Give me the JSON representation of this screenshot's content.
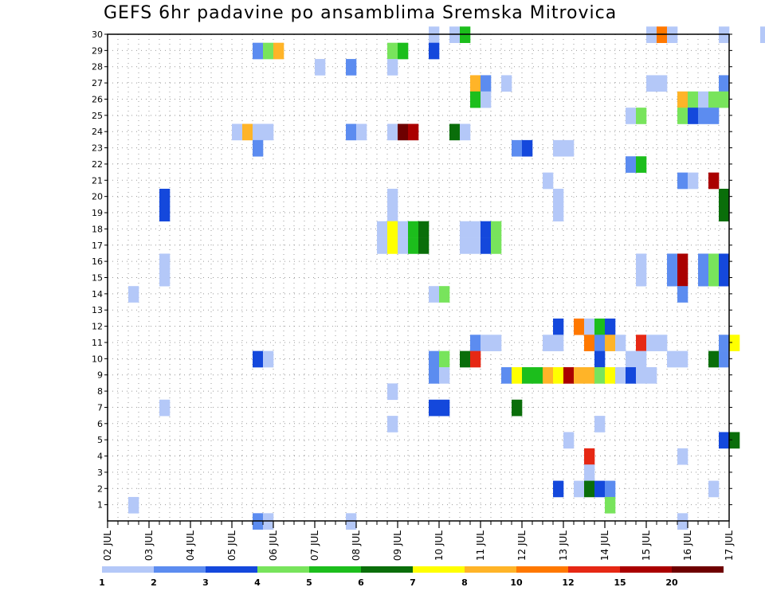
{
  "chart_data": {
    "type": "heatmap",
    "title": "GEFS 6hr padavine po ansamblima Sremska Mitrovica",
    "xlabel": "",
    "ylabel": "",
    "x_ticks": [
      "02 JUL",
      "03 JUL",
      "04 JUL",
      "05 JUL",
      "06 JUL",
      "07 JUL",
      "08 JUL",
      "09 JUL",
      "10 JUL",
      "11 JUL",
      "12 JUL",
      "13 JUL",
      "14 JUL",
      "15 JUL",
      "16 JUL",
      "17 JUL"
    ],
    "y_ticks": [
      1,
      2,
      3,
      4,
      5,
      6,
      7,
      8,
      9,
      10,
      11,
      12,
      13,
      14,
      15,
      16,
      17,
      18,
      19,
      20,
      21,
      22,
      23,
      24,
      25,
      26,
      27,
      28,
      29,
      30
    ],
    "ylim": [
      0,
      30
    ],
    "grid": true,
    "legend_placement": "bottom",
    "color_scale": {
      "labels": [
        "1",
        "2",
        "3",
        "4",
        "5",
        "6",
        "7",
        "8",
        "10",
        "12",
        "15",
        "20"
      ],
      "colors": [
        "#b4c8f8",
        "#5c8cf0",
        "#1448dc",
        "#78e45c",
        "#1cbe1c",
        "#0a6e0a",
        "#ffff00",
        "#ffb428",
        "#ff7800",
        "#e62814",
        "#aa0000",
        "#6e0000"
      ]
    },
    "cells": [
      {
        "d": "09 JUL 18",
        "m": 30,
        "c": 1
      },
      {
        "d": "10 JUL 06",
        "m": 30,
        "c": 1
      },
      {
        "d": "10 JUL 12",
        "m": 30,
        "c": 5
      },
      {
        "d": "15 JUL 00",
        "m": 30,
        "c": 1
      },
      {
        "d": "15 JUL 06",
        "m": 30,
        "c": 9
      },
      {
        "d": "15 JUL 12",
        "m": 30,
        "c": 1
      },
      {
        "d": "16 JUL 18",
        "m": 30,
        "c": 1
      },
      {
        "d": "17 JUL 18",
        "m": 30,
        "c": 1
      },
      {
        "d": "05 JUL 12",
        "m": 29,
        "c": 2
      },
      {
        "d": "05 JUL 18",
        "m": 29,
        "c": 4
      },
      {
        "d": "06 JUL 00",
        "m": 29,
        "c": 8
      },
      {
        "d": "08 JUL 18",
        "m": 29,
        "c": 4
      },
      {
        "d": "09 JUL 00",
        "m": 29,
        "c": 5
      },
      {
        "d": "09 JUL 18",
        "m": 29,
        "c": 3
      },
      {
        "d": "07 JUL 00",
        "m": 28,
        "c": 1
      },
      {
        "d": "07 JUL 18",
        "m": 28,
        "c": 2
      },
      {
        "d": "08 JUL 18",
        "m": 28,
        "c": 1
      },
      {
        "d": "10 JUL 18",
        "m": 27,
        "c": 8
      },
      {
        "d": "11 JUL 00",
        "m": 27,
        "c": 2
      },
      {
        "d": "11 JUL 12",
        "m": 27,
        "c": 1
      },
      {
        "d": "15 JUL 00",
        "m": 27,
        "c": 1
      },
      {
        "d": "15 JUL 06",
        "m": 27,
        "c": 1
      },
      {
        "d": "16 JUL 18",
        "m": 27,
        "c": 2
      },
      {
        "d": "10 JUL 18",
        "m": 26,
        "c": 5
      },
      {
        "d": "11 JUL 00",
        "m": 26,
        "c": 1
      },
      {
        "d": "15 JUL 18",
        "m": 26,
        "c": 8
      },
      {
        "d": "16 JUL 00",
        "m": 26,
        "c": 4
      },
      {
        "d": "16 JUL 06",
        "m": 26,
        "c": 1
      },
      {
        "d": "16 JUL 12",
        "m": 26,
        "c": 4
      },
      {
        "d": "16 JUL 18",
        "m": 26,
        "c": 4
      },
      {
        "d": "14 JUL 12",
        "m": 25,
        "c": 1
      },
      {
        "d": "14 JUL 18",
        "m": 25,
        "c": 4
      },
      {
        "d": "15 JUL 18",
        "m": 25,
        "c": 4
      },
      {
        "d": "16 JUL 00",
        "m": 25,
        "c": 3
      },
      {
        "d": "16 JUL 06",
        "m": 25,
        "c": 2
      },
      {
        "d": "16 JUL 12",
        "m": 25,
        "c": 2
      },
      {
        "d": "05 JUL 00",
        "m": 24,
        "c": 1
      },
      {
        "d": "05 JUL 06",
        "m": 24,
        "c": 8
      },
      {
        "d": "05 JUL 12",
        "m": 24,
        "c": 1
      },
      {
        "d": "05 JUL 18",
        "m": 24,
        "c": 1
      },
      {
        "d": "07 JUL 18",
        "m": 24,
        "c": 2
      },
      {
        "d": "08 JUL 00",
        "m": 24,
        "c": 1
      },
      {
        "d": "08 JUL 18",
        "m": 24,
        "c": 1
      },
      {
        "d": "09 JUL 00",
        "m": 24,
        "c": 12
      },
      {
        "d": "09 JUL 06",
        "m": 24,
        "c": 11
      },
      {
        "d": "10 JUL 06",
        "m": 24,
        "c": 6
      },
      {
        "d": "10 JUL 12",
        "m": 24,
        "c": 1
      },
      {
        "d": "05 JUL 12",
        "m": 23,
        "c": 2
      },
      {
        "d": "11 JUL 18",
        "m": 23,
        "c": 2
      },
      {
        "d": "12 JUL 00",
        "m": 23,
        "c": 3
      },
      {
        "d": "12 JUL 18",
        "m": 23,
        "c": 1
      },
      {
        "d": "13 JUL 00",
        "m": 23,
        "c": 1
      },
      {
        "d": "14 JUL 12",
        "m": 22,
        "c": 2
      },
      {
        "d": "14 JUL 18",
        "m": 22,
        "c": 5
      },
      {
        "d": "12 JUL 12",
        "m": 21,
        "c": 1
      },
      {
        "d": "15 JUL 18",
        "m": 21,
        "c": 2
      },
      {
        "d": "16 JUL 00",
        "m": 21,
        "c": 1
      },
      {
        "d": "16 JUL 12",
        "m": 21,
        "c": 11
      },
      {
        "d": "03 JUL 06",
        "m": 20,
        "c": 3
      },
      {
        "d": "08 JUL 18",
        "m": 20,
        "c": 1
      },
      {
        "d": "12 JUL 18",
        "m": 20,
        "c": 1
      },
      {
        "d": "16 JUL 18",
        "m": 20,
        "c": 6
      },
      {
        "d": "03 JUL 06",
        "m": 19,
        "c": 3
      },
      {
        "d": "08 JUL 18",
        "m": 19,
        "c": 1
      },
      {
        "d": "12 JUL 18",
        "m": 19,
        "c": 1
      },
      {
        "d": "16 JUL 18",
        "m": 19,
        "c": 6
      },
      {
        "d": "08 JUL 12",
        "m": 18,
        "c": 1
      },
      {
        "d": "08 JUL 18",
        "m": 18,
        "c": 7
      },
      {
        "d": "09 JUL 00",
        "m": 18,
        "c": 1
      },
      {
        "d": "09 JUL 06",
        "m": 18,
        "c": 5
      },
      {
        "d": "09 JUL 12",
        "m": 18,
        "c": 6
      },
      {
        "d": "10 JUL 12",
        "m": 18,
        "c": 1
      },
      {
        "d": "10 JUL 18",
        "m": 18,
        "c": 1
      },
      {
        "d": "11 JUL 00",
        "m": 18,
        "c": 3
      },
      {
        "d": "11 JUL 06",
        "m": 18,
        "c": 4
      },
      {
        "d": "08 JUL 12",
        "m": 17,
        "c": 1
      },
      {
        "d": "08 JUL 18",
        "m": 17,
        "c": 7
      },
      {
        "d": "09 JUL 00",
        "m": 17,
        "c": 1
      },
      {
        "d": "09 JUL 06",
        "m": 17,
        "c": 5
      },
      {
        "d": "09 JUL 12",
        "m": 17,
        "c": 6
      },
      {
        "d": "10 JUL 12",
        "m": 17,
        "c": 1
      },
      {
        "d": "10 JUL 18",
        "m": 17,
        "c": 1
      },
      {
        "d": "11 JUL 00",
        "m": 17,
        "c": 3
      },
      {
        "d": "11 JUL 06",
        "m": 17,
        "c": 4
      },
      {
        "d": "03 JUL 06",
        "m": 16,
        "c": 1
      },
      {
        "d": "14 JUL 18",
        "m": 16,
        "c": 1
      },
      {
        "d": "15 JUL 12",
        "m": 16,
        "c": 2
      },
      {
        "d": "15 JUL 18",
        "m": 16,
        "c": 11
      },
      {
        "d": "16 JUL 06",
        "m": 16,
        "c": 2
      },
      {
        "d": "16 JUL 12",
        "m": 16,
        "c": 4
      },
      {
        "d": "16 JUL 18",
        "m": 16,
        "c": 3
      },
      {
        "d": "03 JUL 06",
        "m": 15,
        "c": 1
      },
      {
        "d": "14 JUL 18",
        "m": 15,
        "c": 1
      },
      {
        "d": "15 JUL 12",
        "m": 15,
        "c": 2
      },
      {
        "d": "15 JUL 18",
        "m": 15,
        "c": 11
      },
      {
        "d": "16 JUL 06",
        "m": 15,
        "c": 2
      },
      {
        "d": "16 JUL 12",
        "m": 15,
        "c": 4
      },
      {
        "d": "16 JUL 18",
        "m": 15,
        "c": 3
      },
      {
        "d": "02 JUL 12",
        "m": 14,
        "c": 1
      },
      {
        "d": "09 JUL 18",
        "m": 14,
        "c": 1
      },
      {
        "d": "10 JUL 00",
        "m": 14,
        "c": 4
      },
      {
        "d": "15 JUL 18",
        "m": 14,
        "c": 2
      },
      {
        "d": "12 JUL 18",
        "m": 12,
        "c": 3
      },
      {
        "d": "13 JUL 06",
        "m": 12,
        "c": 9
      },
      {
        "d": "13 JUL 12",
        "m": 12,
        "c": 1
      },
      {
        "d": "13 JUL 18",
        "m": 12,
        "c": 5
      },
      {
        "d": "14 JUL 00",
        "m": 12,
        "c": 3
      },
      {
        "d": "10 JUL 18",
        "m": 11,
        "c": 2
      },
      {
        "d": "11 JUL 00",
        "m": 11,
        "c": 1
      },
      {
        "d": "11 JUL 06",
        "m": 11,
        "c": 1
      },
      {
        "d": "12 JUL 12",
        "m": 11,
        "c": 1
      },
      {
        "d": "12 JUL 18",
        "m": 11,
        "c": 1
      },
      {
        "d": "13 JUL 12",
        "m": 11,
        "c": 9
      },
      {
        "d": "13 JUL 18",
        "m": 11,
        "c": 2
      },
      {
        "d": "14 JUL 00",
        "m": 11,
        "c": 8
      },
      {
        "d": "14 JUL 06",
        "m": 11,
        "c": 1
      },
      {
        "d": "14 JUL 18",
        "m": 11,
        "c": 10
      },
      {
        "d": "15 JUL 00",
        "m": 11,
        "c": 1
      },
      {
        "d": "15 JUL 06",
        "m": 11,
        "c": 1
      },
      {
        "d": "16 JUL 18",
        "m": 11,
        "c": 2
      },
      {
        "d": "17 JUL 00",
        "m": 11,
        "c": 7
      },
      {
        "d": "05 JUL 12",
        "m": 10,
        "c": 3
      },
      {
        "d": "05 JUL 18",
        "m": 10,
        "c": 1
      },
      {
        "d": "09 JUL 18",
        "m": 10,
        "c": 2
      },
      {
        "d": "10 JUL 00",
        "m": 10,
        "c": 4
      },
      {
        "d": "10 JUL 12",
        "m": 10,
        "c": 6
      },
      {
        "d": "10 JUL 18",
        "m": 10,
        "c": 10
      },
      {
        "d": "13 JUL 18",
        "m": 10,
        "c": 3
      },
      {
        "d": "14 JUL 12",
        "m": 10,
        "c": 1
      },
      {
        "d": "14 JUL 18",
        "m": 10,
        "c": 1
      },
      {
        "d": "15 JUL 12",
        "m": 10,
        "c": 1
      },
      {
        "d": "15 JUL 18",
        "m": 10,
        "c": 1
      },
      {
        "d": "16 JUL 12",
        "m": 10,
        "c": 6
      },
      {
        "d": "16 JUL 18",
        "m": 10,
        "c": 2
      },
      {
        "d": "09 JUL 18",
        "m": 9,
        "c": 2
      },
      {
        "d": "10 JUL 00",
        "m": 9,
        "c": 1
      },
      {
        "d": "11 JUL 12",
        "m": 9,
        "c": 2
      },
      {
        "d": "11 JUL 18",
        "m": 9,
        "c": 7
      },
      {
        "d": "12 JUL 00",
        "m": 9,
        "c": 5
      },
      {
        "d": "12 JUL 06",
        "m": 9,
        "c": 5
      },
      {
        "d": "12 JUL 12",
        "m": 9,
        "c": 8
      },
      {
        "d": "12 JUL 18",
        "m": 9,
        "c": 7
      },
      {
        "d": "13 JUL 00",
        "m": 9,
        "c": 11
      },
      {
        "d": "13 JUL 06",
        "m": 9,
        "c": 8
      },
      {
        "d": "13 JUL 12",
        "m": 9,
        "c": 8
      },
      {
        "d": "13 JUL 18",
        "m": 9,
        "c": 4
      },
      {
        "d": "14 JUL 00",
        "m": 9,
        "c": 7
      },
      {
        "d": "14 JUL 06",
        "m": 9,
        "c": 1
      },
      {
        "d": "14 JUL 12",
        "m": 9,
        "c": 3
      },
      {
        "d": "14 JUL 18",
        "m": 9,
        "c": 1
      },
      {
        "d": "15 JUL 00",
        "m": 9,
        "c": 1
      },
      {
        "d": "08 JUL 18",
        "m": 8,
        "c": 1
      },
      {
        "d": "03 JUL 06",
        "m": 7,
        "c": 1
      },
      {
        "d": "09 JUL 18",
        "m": 7,
        "c": 3
      },
      {
        "d": "10 JUL 00",
        "m": 7,
        "c": 3
      },
      {
        "d": "11 JUL 18",
        "m": 7,
        "c": 6
      },
      {
        "d": "08 JUL 18",
        "m": 6,
        "c": 1
      },
      {
        "d": "13 JUL 18",
        "m": 6,
        "c": 1
      },
      {
        "d": "13 JUL 00",
        "m": 5,
        "c": 1
      },
      {
        "d": "16 JUL 18",
        "m": 5,
        "c": 3
      },
      {
        "d": "17 JUL 00",
        "m": 5,
        "c": 6
      },
      {
        "d": "13 JUL 12",
        "m": 4,
        "c": 10
      },
      {
        "d": "15 JUL 18",
        "m": 4,
        "c": 1
      },
      {
        "d": "13 JUL 12",
        "m": 3,
        "c": 1
      },
      {
        "d": "12 JUL 18",
        "m": 2,
        "c": 3
      },
      {
        "d": "13 JUL 06",
        "m": 2,
        "c": 1
      },
      {
        "d": "13 JUL 12",
        "m": 2,
        "c": 6
      },
      {
        "d": "13 JUL 18",
        "m": 2,
        "c": 3
      },
      {
        "d": "14 JUL 00",
        "m": 2,
        "c": 2
      },
      {
        "d": "16 JUL 12",
        "m": 2,
        "c": 1
      },
      {
        "d": "02 JUL 12",
        "m": 1,
        "c": 1
      },
      {
        "d": "14 JUL 00",
        "m": 1,
        "c": 4
      },
      {
        "d": "05 JUL 12",
        "m": 0,
        "c": 2
      },
      {
        "d": "05 JUL 18",
        "m": 0,
        "c": 1
      },
      {
        "d": "07 JUL 18",
        "m": 0,
        "c": 1
      },
      {
        "d": "15 JUL 18",
        "m": 0,
        "c": 1
      }
    ]
  }
}
